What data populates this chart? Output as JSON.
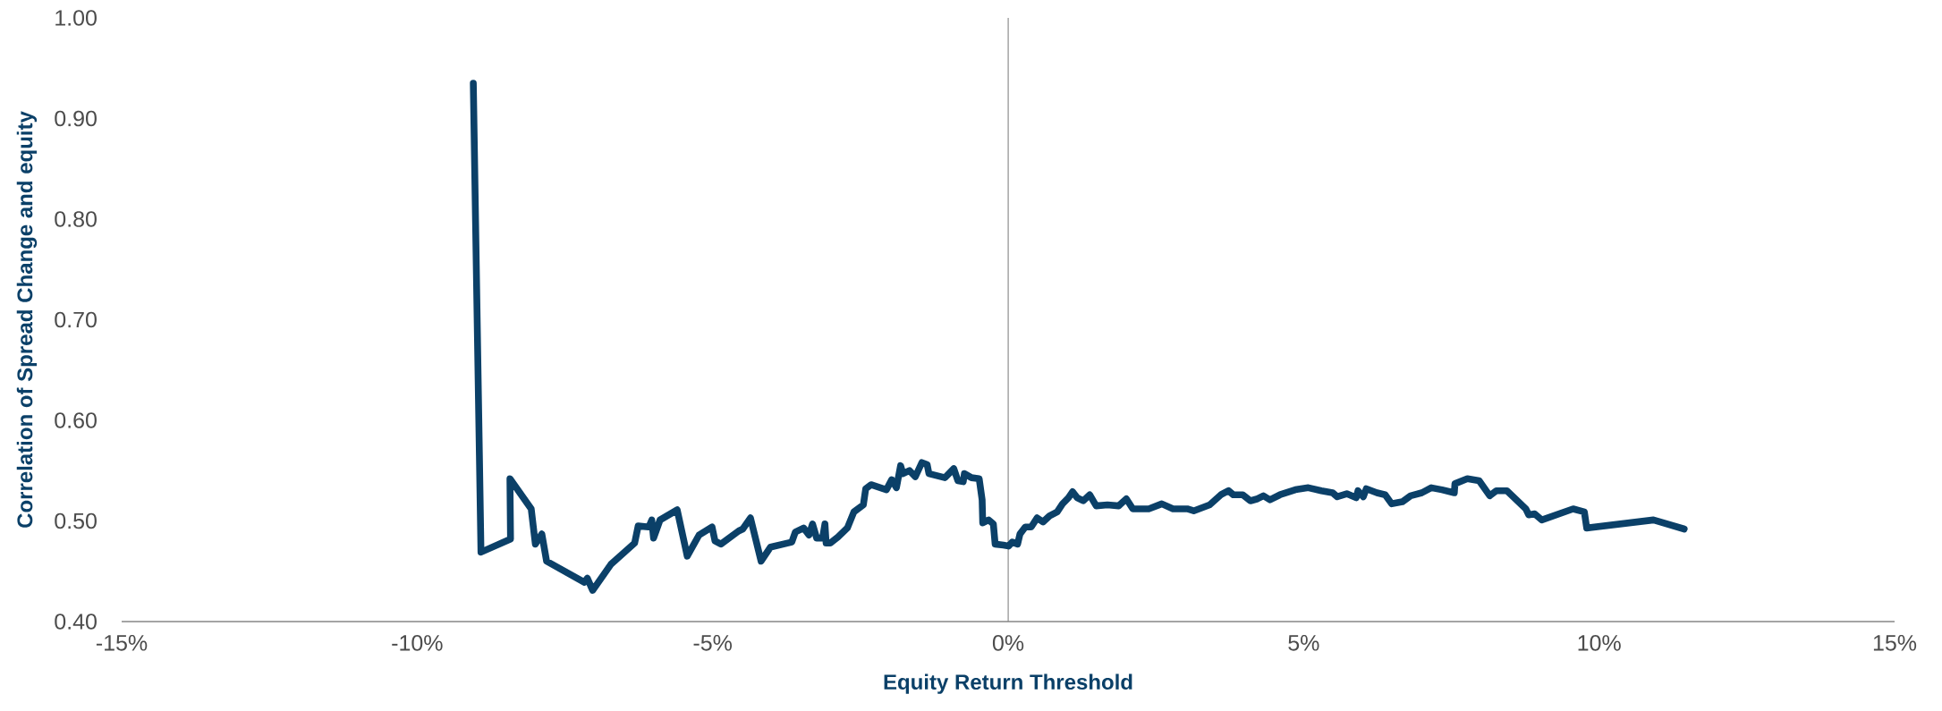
{
  "chart_data": {
    "type": "line",
    "xlabel": "Equity Return Threshold",
    "ylabel": "Correlation of Spread Change and equity",
    "xlim": [
      -15,
      15
    ],
    "ylim": [
      0.4,
      1.0
    ],
    "xticks": [
      {
        "value": -15,
        "label": "-15%"
      },
      {
        "value": -10,
        "label": "-10%"
      },
      {
        "value": -5,
        "label": "-5%"
      },
      {
        "value": 0,
        "label": "0%"
      },
      {
        "value": 5,
        "label": "5%"
      },
      {
        "value": 10,
        "label": "10%"
      },
      {
        "value": 15,
        "label": "15%"
      }
    ],
    "yticks": [
      {
        "value": 0.4,
        "label": "0.40"
      },
      {
        "value": 0.5,
        "label": "0.50"
      },
      {
        "value": 0.6,
        "label": "0.60"
      },
      {
        "value": 0.7,
        "label": "0.70"
      },
      {
        "value": 0.8,
        "label": "0.80"
      },
      {
        "value": 0.9,
        "label": "0.90"
      },
      {
        "value": 1.0,
        "label": "1.00"
      }
    ],
    "grid": false,
    "marker": "none",
    "line_style": "solid",
    "ref_lines": [
      {
        "axis": "x",
        "value": 0,
        "color": "#808080"
      }
    ],
    "series": [
      {
        "color": "#0b4068",
        "x": [
          -9.05,
          -8.92,
          -8.42,
          -8.43,
          -8.07,
          -8.0,
          -7.89,
          -7.81,
          -7.17,
          -7.12,
          -7.03,
          -6.72,
          -6.32,
          -6.26,
          -6.08,
          -6.03,
          -6.0,
          -5.89,
          -5.6,
          -5.43,
          -5.23,
          -5.01,
          -4.96,
          -4.86,
          -4.56,
          -4.49,
          -4.36,
          -4.18,
          -4.02,
          -3.66,
          -3.6,
          -3.46,
          -3.37,
          -3.31,
          -3.24,
          -3.14,
          -3.1,
          -3.08,
          -3.01,
          -2.88,
          -2.72,
          -2.61,
          -2.45,
          -2.41,
          -2.32,
          -2.06,
          -1.97,
          -1.89,
          -1.82,
          -1.78,
          -1.67,
          -1.57,
          -1.46,
          -1.37,
          -1.34,
          -1.07,
          -0.92,
          -0.85,
          -0.76,
          -0.74,
          -0.62,
          -0.49,
          -0.44,
          -0.43,
          -0.33,
          -0.25,
          -0.22,
          -0.08,
          0.01,
          0.07,
          0.16,
          0.2,
          0.29,
          0.39,
          0.49,
          0.59,
          0.7,
          0.83,
          0.92,
          1.02,
          1.09,
          1.17,
          1.27,
          1.38,
          1.49,
          1.68,
          1.87,
          2.0,
          2.11,
          2.38,
          2.6,
          2.79,
          3.03,
          3.14,
          3.41,
          3.6,
          3.73,
          3.81,
          3.97,
          4.1,
          4.22,
          4.32,
          4.43,
          4.6,
          4.86,
          5.08,
          5.3,
          5.49,
          5.57,
          5.73,
          5.89,
          5.92,
          6.01,
          6.06,
          6.24,
          6.38,
          6.49,
          6.67,
          6.81,
          7.0,
          7.16,
          7.34,
          7.55,
          7.56,
          7.77,
          7.97,
          8.15,
          8.26,
          8.44,
          8.76,
          8.81,
          8.91,
          9.03,
          9.56,
          9.75,
          9.79,
          10.92,
          11.44
        ],
        "values": [
          0.935,
          0.469,
          0.482,
          0.542,
          0.512,
          0.477,
          0.487,
          0.46,
          0.439,
          0.443,
          0.431,
          0.457,
          0.478,
          0.495,
          0.494,
          0.501,
          0.483,
          0.501,
          0.511,
          0.465,
          0.486,
          0.494,
          0.48,
          0.477,
          0.49,
          0.492,
          0.503,
          0.46,
          0.474,
          0.479,
          0.489,
          0.493,
          0.486,
          0.497,
          0.483,
          0.483,
          0.497,
          0.478,
          0.478,
          0.484,
          0.493,
          0.509,
          0.516,
          0.532,
          0.536,
          0.531,
          0.541,
          0.533,
          0.555,
          0.547,
          0.55,
          0.544,
          0.558,
          0.556,
          0.547,
          0.543,
          0.552,
          0.54,
          0.539,
          0.547,
          0.543,
          0.542,
          0.521,
          0.498,
          0.501,
          0.497,
          0.477,
          0.476,
          0.475,
          0.479,
          0.477,
          0.487,
          0.494,
          0.494,
          0.503,
          0.499,
          0.505,
          0.509,
          0.517,
          0.523,
          0.529,
          0.523,
          0.52,
          0.526,
          0.515,
          0.516,
          0.515,
          0.522,
          0.512,
          0.512,
          0.517,
          0.512,
          0.512,
          0.51,
          0.516,
          0.526,
          0.53,
          0.526,
          0.526,
          0.52,
          0.522,
          0.525,
          0.521,
          0.526,
          0.531,
          0.533,
          0.53,
          0.528,
          0.524,
          0.527,
          0.523,
          0.53,
          0.524,
          0.532,
          0.528,
          0.526,
          0.517,
          0.519,
          0.525,
          0.528,
          0.533,
          0.531,
          0.528,
          0.537,
          0.542,
          0.54,
          0.525,
          0.53,
          0.53,
          0.512,
          0.506,
          0.507,
          0.501,
          0.512,
          0.509,
          0.493,
          0.501,
          0.492
        ]
      }
    ]
  }
}
